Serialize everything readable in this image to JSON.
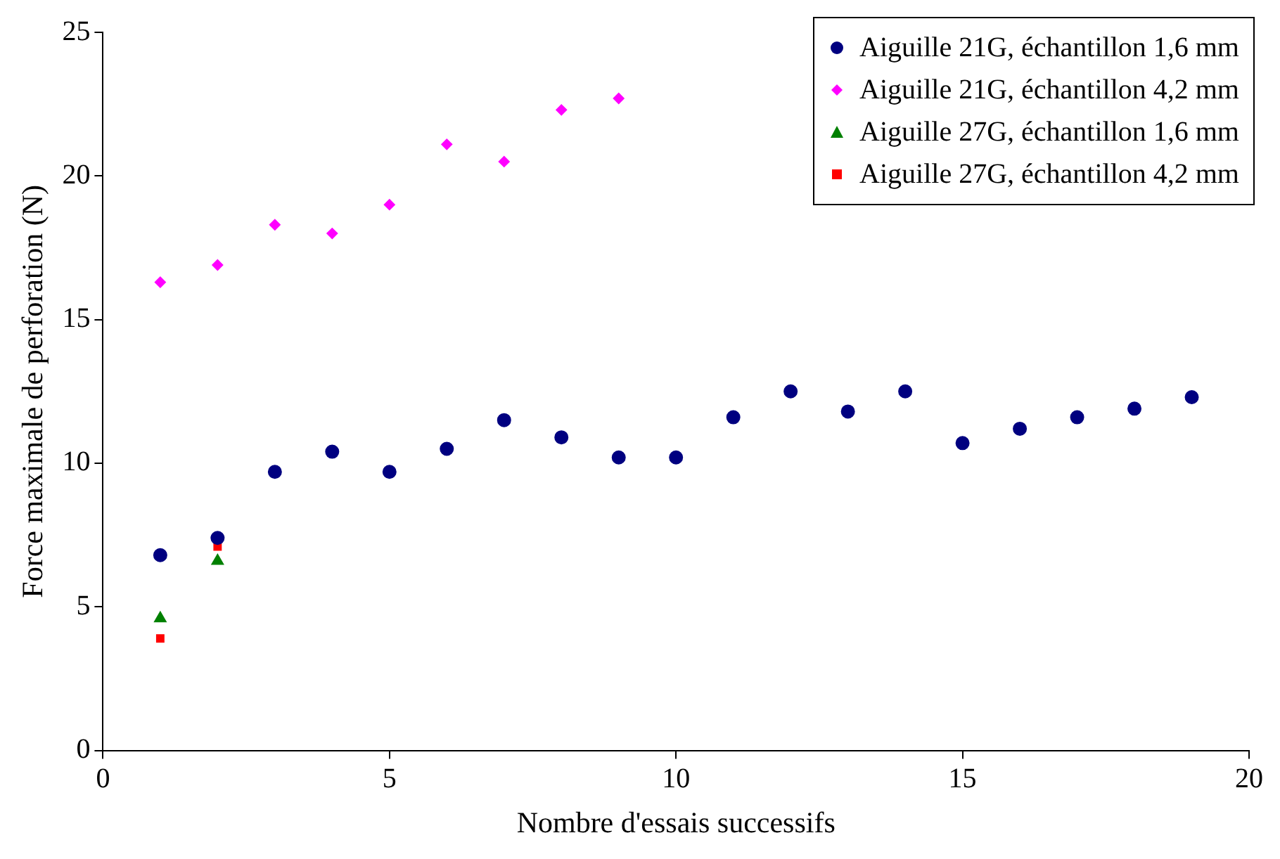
{
  "chart_data": {
    "type": "scatter",
    "xlabel": "Nombre d'essais successifs",
    "ylabel": "Force maximale de perforation (N)",
    "xlim": [
      0,
      20
    ],
    "xticks": [
      0,
      5,
      10,
      15,
      20
    ],
    "ylim": [
      0,
      25
    ],
    "yticks": [
      0,
      5,
      10,
      15,
      20,
      25
    ],
    "grid": false,
    "legend": "top right",
    "series": [
      {
        "name": "Aiguille 21G, échantillon 1,6 mm",
        "color": "#000080",
        "marker": "circle",
        "x": [
          1,
          2,
          3,
          4,
          5,
          6,
          7,
          8,
          9,
          10,
          11,
          12,
          13,
          14,
          15,
          16,
          17,
          18,
          19
        ],
        "values": [
          6.8,
          7.4,
          9.7,
          10.4,
          9.7,
          10.5,
          11.5,
          10.9,
          10.2,
          10.2,
          11.6,
          12.5,
          11.8,
          12.5,
          10.7,
          11.2,
          11.6,
          11.9,
          12.3
        ]
      },
      {
        "name": "Aiguille 21G, échantillon 4,2 mm",
        "color": "#ff00ff",
        "marker": "diamond",
        "x": [
          1,
          2,
          3,
          4,
          5,
          6,
          7,
          8,
          9
        ],
        "values": [
          16.3,
          16.9,
          18.3,
          18.0,
          19.0,
          21.1,
          20.5,
          22.3,
          22.7
        ]
      },
      {
        "name": "Aiguille 27G, échantillon 1,6 mm",
        "color": "#008000",
        "marker": "triangle",
        "x": [
          1,
          2
        ],
        "values": [
          4.6,
          6.6
        ]
      },
      {
        "name": "Aiguille 27G, échantillon 4,2 mm",
        "color": "#ff0000",
        "marker": "square",
        "x": [
          1,
          2
        ],
        "values": [
          3.9,
          7.1
        ]
      }
    ]
  }
}
